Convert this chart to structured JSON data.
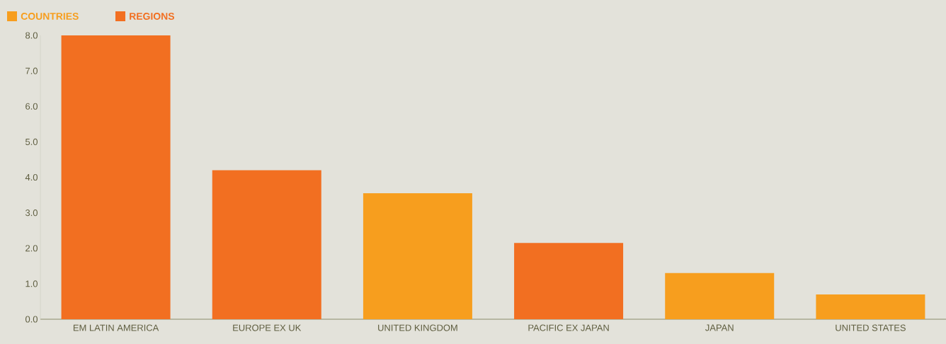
{
  "chart_data": {
    "type": "bar",
    "categories": [
      "EM LATIN AMERICA",
      "EUROPE EX UK",
      "UNITED KINGDOM",
      "PACIFIC EX JAPAN",
      "JAPAN",
      "UNITED STATES"
    ],
    "series": [
      {
        "name": "COUNTRIES",
        "color": "#f79e1e",
        "values": [
          null,
          null,
          3.55,
          null,
          1.3,
          0.7
        ]
      },
      {
        "name": "REGIONS",
        "color": "#f26f21",
        "values": [
          8.0,
          4.2,
          null,
          2.15,
          null,
          null
        ]
      }
    ],
    "ylim": [
      0,
      8
    ],
    "yticks": [
      {
        "value": 0,
        "label": "0.0"
      },
      {
        "value": 1,
        "label": "1.0"
      },
      {
        "value": 2,
        "label": "2.0"
      },
      {
        "value": 3,
        "label": "3.0"
      },
      {
        "value": 4,
        "label": "4.0"
      },
      {
        "value": 5,
        "label": "5.0"
      },
      {
        "value": 6,
        "label": "6.0"
      },
      {
        "value": 7,
        "label": "7.0"
      },
      {
        "value": 8,
        "label": "8.0"
      }
    ],
    "legend": "top left",
    "grid": false
  }
}
